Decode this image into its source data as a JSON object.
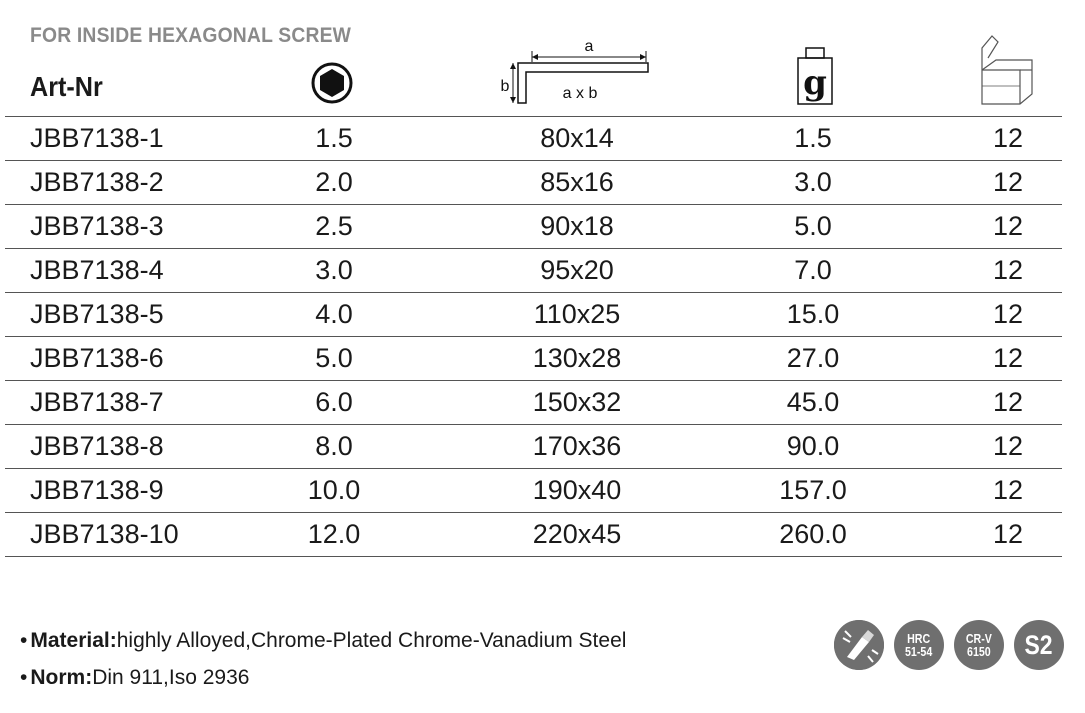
{
  "header": {
    "subtitle": "FOR INSIDE HEXAGONAL SCREW",
    "art_label": "Art-Nr",
    "dim_icon": {
      "a": "a",
      "b": "b",
      "axb": "a x b"
    },
    "weight_icon": {
      "glyph": "g"
    },
    "icons": [
      "hex-socket-icon",
      "l-key-dimension-icon",
      "weight-icon",
      "box-icon"
    ]
  },
  "rows": [
    {
      "art": "JBB7138-1",
      "size": "1.5",
      "dim": "80x14",
      "weight": "1.5",
      "pack": "12"
    },
    {
      "art": "JBB7138-2",
      "size": "2.0",
      "dim": "85x16",
      "weight": "3.0",
      "pack": "12"
    },
    {
      "art": "JBB7138-3",
      "size": "2.5",
      "dim": "90x18",
      "weight": "5.0",
      "pack": "12"
    },
    {
      "art": "JBB7138-4",
      "size": "3.0",
      "dim": "95x20",
      "weight": "7.0",
      "pack": "12"
    },
    {
      "art": "JBB7138-5",
      "size": "4.0",
      "dim": "110x25",
      "weight": "15.0",
      "pack": "12"
    },
    {
      "art": "JBB7138-6",
      "size": "5.0",
      "dim": "130x28",
      "weight": "27.0",
      "pack": "12"
    },
    {
      "art": "JBB7138-7",
      "size": "6.0",
      "dim": "150x32",
      "weight": "45.0",
      "pack": "12"
    },
    {
      "art": "JBB7138-8",
      "size": "8.0",
      "dim": "170x36",
      "weight": "90.0",
      "pack": "12"
    },
    {
      "art": "JBB7138-9",
      "size": "10.0",
      "dim": "190x40",
      "weight": "157.0",
      "pack": "12"
    },
    {
      "art": "JBB7138-10",
      "size": "12.0",
      "dim": "220x45",
      "weight": "260.0",
      "pack": "12"
    }
  ],
  "notes": {
    "bullet": "•",
    "material_label": "Material:",
    "material_value": "highly Alloyed,Chrome-Plated Chrome-Vanadium Steel",
    "norm_label": "Norm:",
    "norm_value": "Din 911,Iso 2936"
  },
  "badges": {
    "hrc_line1": "HRC",
    "hrc_line2": "51-54",
    "crv_line1": "CR-V",
    "crv_line2": "6150",
    "s2": "S2",
    "badge_color": "#6f6f6f",
    "icons": [
      "heat-treatment-icon"
    ]
  }
}
